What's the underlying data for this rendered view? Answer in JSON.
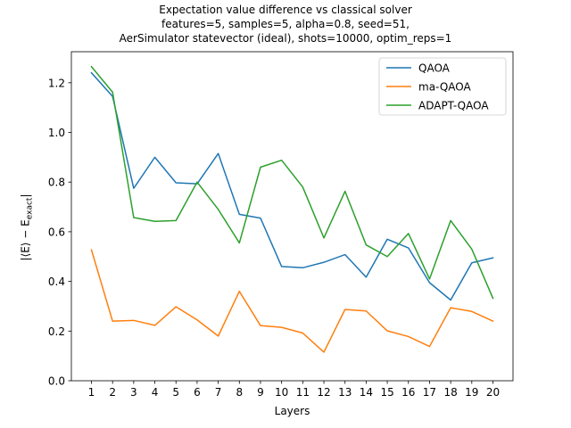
{
  "chart_data": {
    "type": "line",
    "title": [
      "Expectation value difference vs classical solver",
      "features=5, samples=5, alpha=0.8, seed=51,",
      "AerSimulator statevector (ideal), shots=10000, optim_reps=1"
    ],
    "xlabel": "Layers",
    "ylabel": "|⟨E⟩ − E_exact|",
    "ylabel_main": "|⟨E⟩ − E",
    "ylabel_sub": "exact",
    "ylabel_end": "|",
    "x": [
      1,
      2,
      3,
      4,
      5,
      6,
      7,
      8,
      9,
      10,
      11,
      12,
      13,
      14,
      15,
      16,
      17,
      18,
      19,
      20
    ],
    "xlim": [
      0.05,
      20.95
    ],
    "ylim": [
      0.0,
      1.325
    ],
    "yticks": [
      "0.0",
      "0.2",
      "0.4",
      "0.6",
      "0.8",
      "1.0",
      "1.2"
    ],
    "ytick_values": [
      0.0,
      0.2,
      0.4,
      0.6,
      0.8,
      1.0,
      1.2
    ],
    "grid": false,
    "legend_position": "top-right",
    "series": [
      {
        "name": "QAOA",
        "color": "#1f77b4",
        "values": [
          1.24,
          1.145,
          0.775,
          0.9,
          0.797,
          0.793,
          0.915,
          0.67,
          0.655,
          0.46,
          0.455,
          0.477,
          0.508,
          0.417,
          0.57,
          0.535,
          0.395,
          0.325,
          0.475,
          0.495
        ]
      },
      {
        "name": "ma-QAOA",
        "color": "#ff7f0e",
        "values": [
          0.527,
          0.24,
          0.243,
          0.223,
          0.298,
          0.245,
          0.18,
          0.36,
          0.222,
          0.215,
          0.192,
          0.115,
          0.287,
          0.281,
          0.201,
          0.178,
          0.138,
          0.294,
          0.279,
          0.24
        ]
      },
      {
        "name": "ADAPT-QAOA",
        "color": "#2ca02c",
        "values": [
          1.265,
          1.162,
          0.657,
          0.642,
          0.645,
          0.8,
          0.69,
          0.555,
          0.86,
          0.888,
          0.78,
          0.575,
          0.763,
          0.547,
          0.5,
          0.593,
          0.41,
          0.645,
          0.53,
          0.332
        ]
      }
    ]
  }
}
